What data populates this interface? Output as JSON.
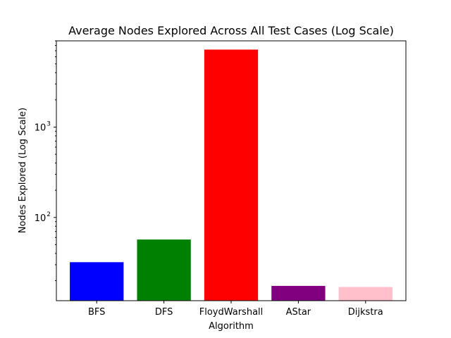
{
  "chart_data": {
    "type": "bar",
    "title": "Average Nodes Explored Across All Test Cases (Log Scale)",
    "xlabel": "Algorithm",
    "ylabel": "Nodes Explored (Log Scale)",
    "yscale": "log",
    "ylim": [
      12,
      9000
    ],
    "grid": false,
    "categories": [
      "BFS",
      "DFS",
      "FloydWarshall",
      "AStar",
      "Dijkstra"
    ],
    "values": [
      32,
      57,
      7200,
      17.5,
      17
    ],
    "colors": [
      "#0000ff",
      "#008000",
      "#ff0000",
      "#800080",
      "#ffc0cb"
    ],
    "ytick_labels": [
      {
        "value": 100,
        "base": "10",
        "exp": "2"
      },
      {
        "value": 1000,
        "base": "10",
        "exp": "3"
      }
    ]
  }
}
